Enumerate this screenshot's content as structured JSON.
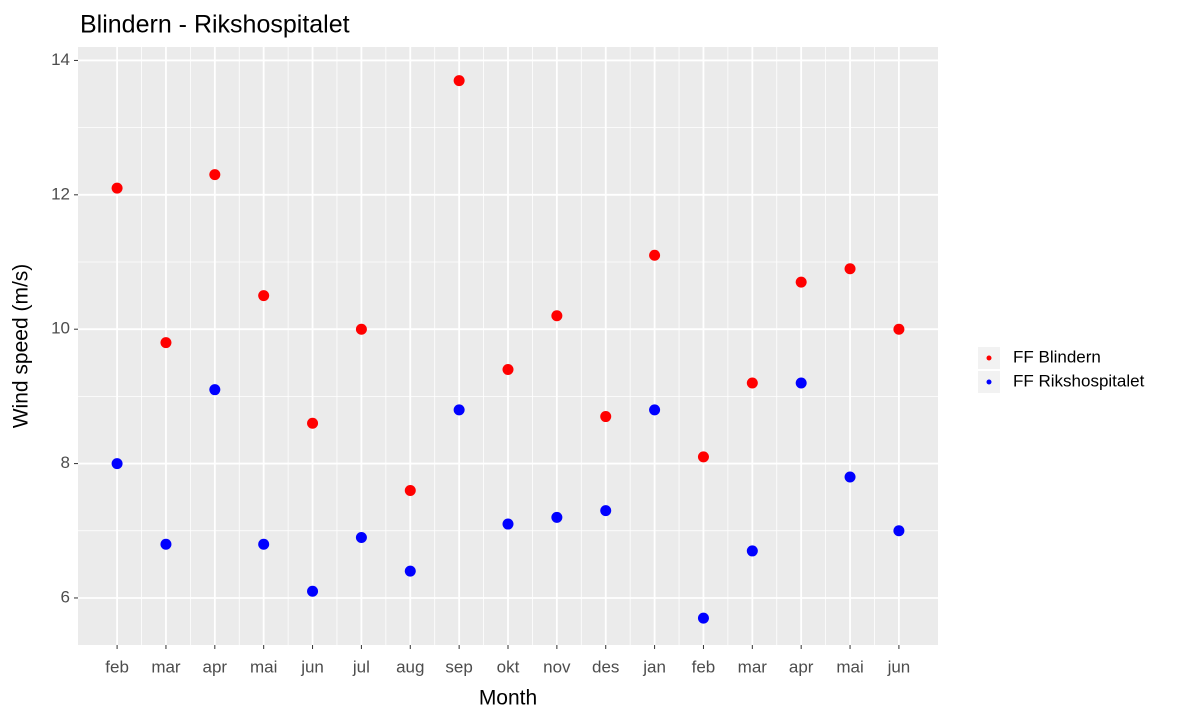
{
  "chart_data": {
    "type": "scatter",
    "title": "Blindern - Rikshospitalet",
    "x_label": "Month",
    "y_label": "Wind speed (m/s)",
    "categories": [
      "feb",
      "mar",
      "apr",
      "mai",
      "jun",
      "jul",
      "aug",
      "sep",
      "okt",
      "nov",
      "des",
      "jan",
      "feb",
      "mar",
      "apr",
      "mai",
      "jun"
    ],
    "series": [
      {
        "name": "FF Blindern",
        "color": "#ff0000",
        "values": [
          12.1,
          9.8,
          12.3,
          10.5,
          8.6,
          10.0,
          7.6,
          13.7,
          9.4,
          10.2,
          8.7,
          11.1,
          8.1,
          9.2,
          10.7,
          10.9,
          10.0
        ]
      },
      {
        "name": "FF Rikshospitalet",
        "color": "#0000ff",
        "values": [
          8.0,
          6.8,
          9.1,
          6.8,
          6.1,
          6.9,
          6.4,
          8.8,
          7.1,
          7.2,
          7.3,
          8.8,
          5.7,
          6.7,
          9.2,
          7.8,
          7.0
        ]
      }
    ],
    "ylim": [
      5.3,
      14.2
    ],
    "yticks": [
      6,
      8,
      10,
      12,
      14
    ],
    "grid": true,
    "legend": "right"
  }
}
